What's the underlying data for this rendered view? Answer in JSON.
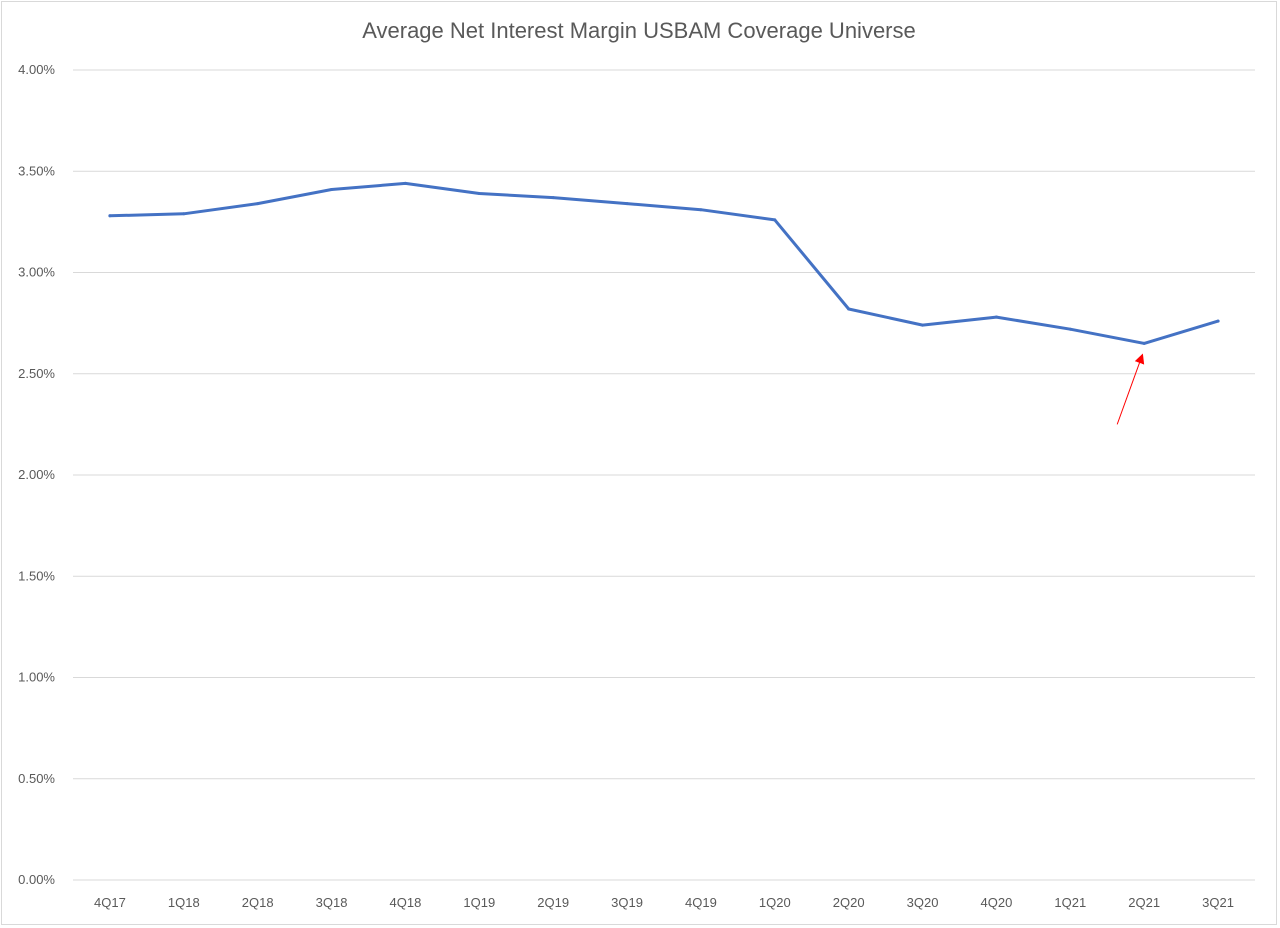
{
  "chart_data": {
    "type": "line",
    "title": "Average Net Interest Margin USBAM Coverage Universe",
    "categories": [
      "4Q17",
      "1Q18",
      "2Q18",
      "3Q18",
      "4Q18",
      "1Q19",
      "2Q19",
      "3Q19",
      "4Q19",
      "1Q20",
      "2Q20",
      "3Q20",
      "4Q20",
      "1Q21",
      "2Q21",
      "3Q21"
    ],
    "series": [
      {
        "values": [
          3.28,
          3.29,
          3.34,
          3.41,
          3.44,
          3.39,
          3.37,
          3.34,
          3.31,
          3.26,
          2.82,
          2.74,
          2.78,
          2.72,
          2.65,
          2.76
        ]
      }
    ],
    "ylim": [
      0,
      4.0
    ],
    "yticks": [
      0,
      0.5,
      1.0,
      1.5,
      2.0,
      2.5,
      3.0,
      3.5,
      4.0
    ],
    "ytick_labels": [
      "0.00%",
      "0.50%",
      "1.00%",
      "1.50%",
      "2.00%",
      "2.50%",
      "3.00%",
      "3.50%",
      "4.00%"
    ],
    "grid": true,
    "line_color": "#4472c4",
    "annotation": {
      "type": "arrow",
      "color": "#ff0000",
      "points_to": "2Q21"
    }
  }
}
